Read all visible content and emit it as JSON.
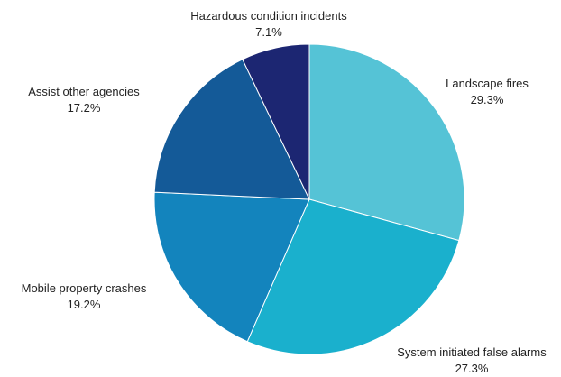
{
  "chart_data": {
    "type": "pie",
    "slices": [
      {
        "label": "Landscape fires",
        "value": 29.3,
        "display": "29.3%",
        "color": "#55c3d6"
      },
      {
        "label": "System initiated false alarms",
        "value": 27.3,
        "display": "27.3%",
        "color": "#1ab0cd"
      },
      {
        "label": "Mobile property crashes",
        "value": 19.2,
        "display": "19.2%",
        "color": "#1384bd"
      },
      {
        "label": "Assist other agencies",
        "value": 17.2,
        "display": "17.2%",
        "color": "#145a98"
      },
      {
        "label": "Hazardous condition incidents",
        "value": 7.1,
        "display": "7.1%",
        "color": "#1c2672"
      }
    ],
    "legend": "none",
    "start": "top",
    "direction": "clockwise"
  }
}
